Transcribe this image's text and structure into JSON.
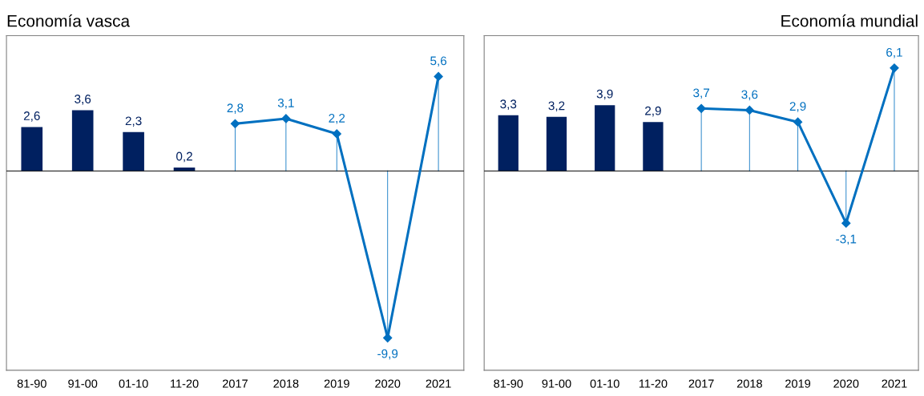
{
  "chart_data": [
    {
      "type": "bar",
      "title": "Economía vasca",
      "categories": [
        "81-90",
        "91-00",
        "01-10",
        "11-20",
        "2017",
        "2018",
        "2019",
        "2020",
        "2021"
      ],
      "grid": false,
      "legend": false,
      "series": [
        {
          "color": "#002060",
          "values": [
            2.6,
            3.6,
            2.3,
            0.2,
            null,
            null,
            null,
            null,
            null
          ],
          "value_labels": [
            "2,6",
            "3,6",
            "2,3",
            "0,2",
            null,
            null,
            null,
            null,
            null
          ]
        },
        {
          "type": "line",
          "color": "#0070c0",
          "marker": "diamond",
          "values": [
            null,
            null,
            null,
            null,
            2.8,
            3.1,
            2.2,
            -9.9,
            5.6
          ],
          "value_labels": [
            null,
            null,
            null,
            null,
            "2,8",
            "3,1",
            "2,2",
            "-9,9",
            "5,6"
          ]
        }
      ]
    },
    {
      "type": "bar",
      "title": "Economía mundial",
      "categories": [
        "81-90",
        "91-00",
        "01-10",
        "11-20",
        "2017",
        "2018",
        "2019",
        "2020",
        "2021"
      ],
      "grid": false,
      "legend": false,
      "series": [
        {
          "color": "#002060",
          "values": [
            3.3,
            3.2,
            3.9,
            2.9,
            null,
            null,
            null,
            null,
            null
          ],
          "value_labels": [
            "3,3",
            "3,2",
            "3,9",
            "2,9",
            null,
            null,
            null,
            null,
            null
          ]
        },
        {
          "type": "line",
          "color": "#0070c0",
          "marker": "diamond",
          "values": [
            null,
            null,
            null,
            null,
            3.7,
            3.6,
            2.9,
            -3.1,
            6.1
          ],
          "value_labels": [
            null,
            null,
            null,
            null,
            "3,7",
            "3,6",
            "2,9",
            "-3,1",
            "6,1"
          ]
        }
      ]
    }
  ]
}
